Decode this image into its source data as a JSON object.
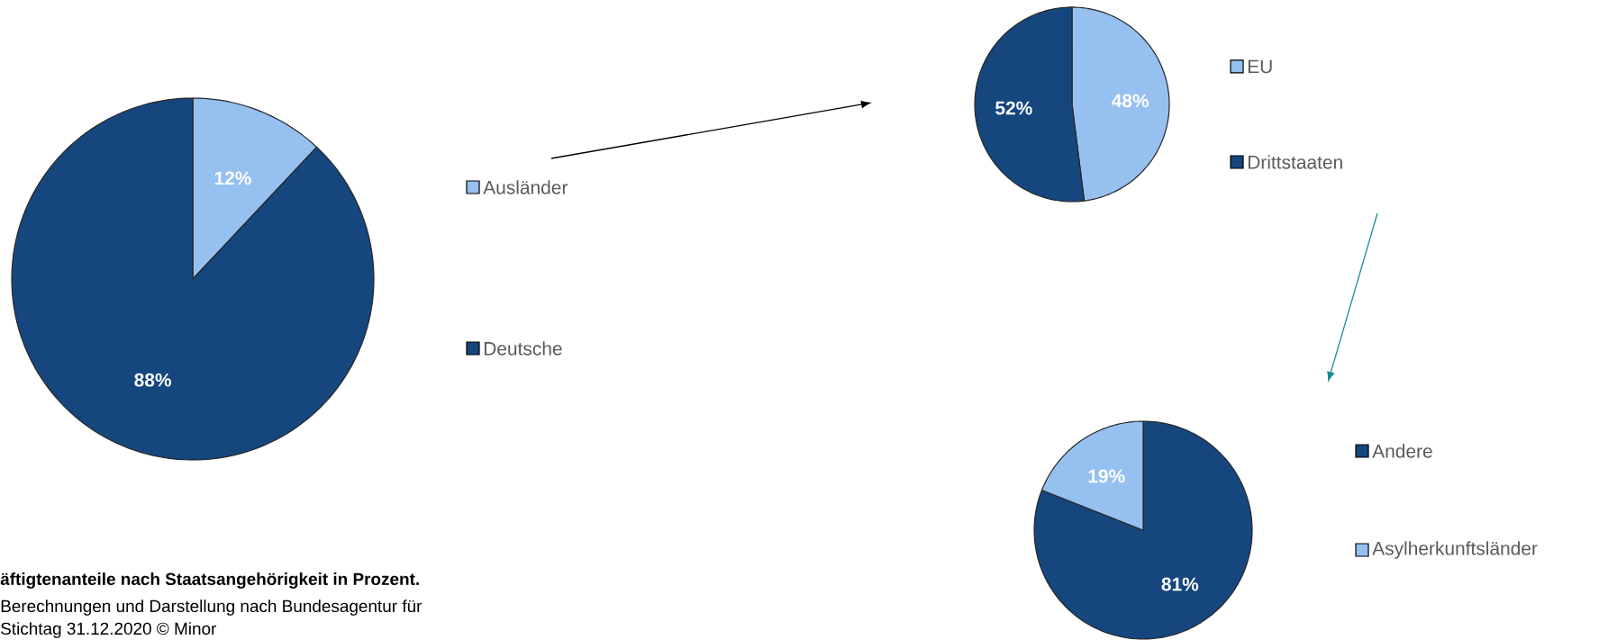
{
  "chart_data": [
    {
      "type": "pie",
      "categories": [
        "Ausländer",
        "Deutsche"
      ],
      "values": [
        12,
        88
      ],
      "value_labels": [
        "12%",
        "88%"
      ],
      "colors": [
        "#95c0ef",
        "#16467e"
      ],
      "legend": "right",
      "annotations": [
        "äftigtenanteile nach Staatsangehörigkeit in Prozent.",
        "Berechnungen und Darstellung nach Bundesagentur für",
        "Stichtag 31.12.2020 © Minor"
      ]
    },
    {
      "type": "pie",
      "categories": [
        "EU",
        "Drittstaaten"
      ],
      "values": [
        48,
        52
      ],
      "value_labels": [
        "48%",
        "52%"
      ],
      "colors": [
        "#95c0ef",
        "#16467e"
      ],
      "legend": "right"
    },
    {
      "type": "pie",
      "categories": [
        "Andere",
        "Asylherkunftsländer"
      ],
      "values": [
        81,
        19
      ],
      "value_labels": [
        "81%",
        "19%"
      ],
      "colors": [
        "#16467e",
        "#95c0ef"
      ],
      "legend": "right"
    }
  ]
}
